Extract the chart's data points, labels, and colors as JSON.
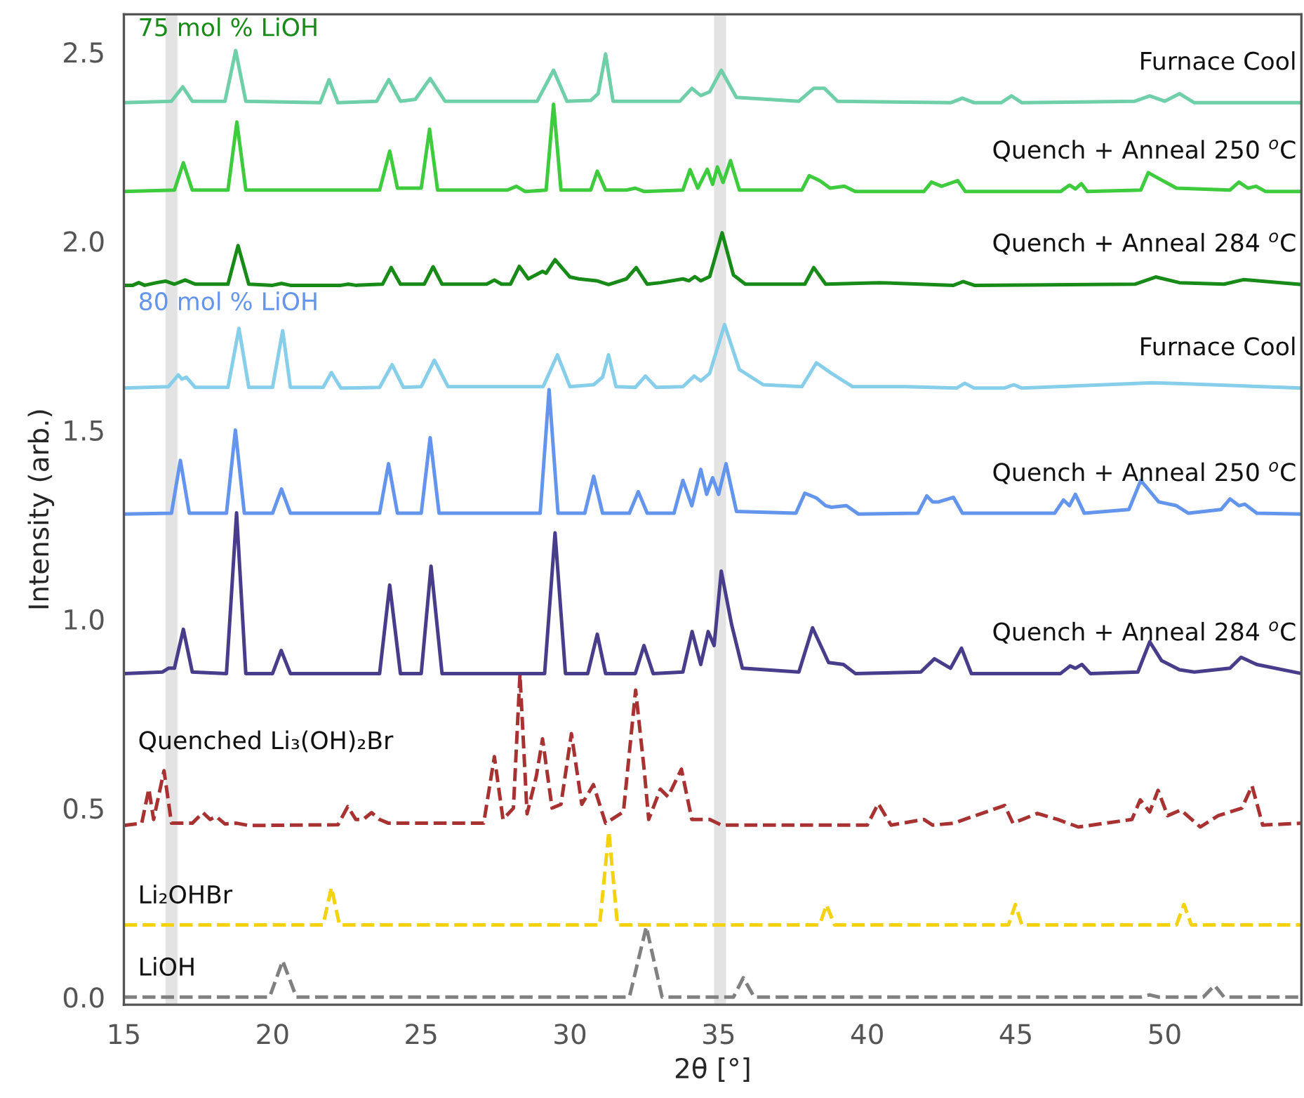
{
  "chart_data": {
    "type": "line",
    "xlabel": "2θ [°]",
    "ylabel": "Intensity (arb.)",
    "xlim": [
      15,
      54.6
    ],
    "ylim": [
      -0.02,
      2.6
    ],
    "xticks": [
      15,
      20,
      25,
      30,
      35,
      40,
      45,
      50
    ],
    "yticks": [
      {
        "value": 0,
        "label": "0.0"
      },
      {
        "value": 0.5,
        "label": "0.5"
      },
      {
        "value": 1,
        "label": "1.0"
      },
      {
        "value": 1.5,
        "label": "1.5"
      },
      {
        "value": 2,
        "label": "2.0"
      },
      {
        "value": 2.5,
        "label": "2.5"
      }
    ],
    "grid": false,
    "legend": false,
    "line_style": "solid",
    "annotations": [
      "75 mol % LiOH",
      "80 mol % LiOH"
    ],
    "bands": [
      {
        "axis": "x",
        "from": 16.4,
        "to": 16.8,
        "color": "#e3e3e3"
      },
      {
        "axis": "x",
        "from": 34.85,
        "to": 35.25,
        "color": "#e3e3e3"
      }
    ],
    "series": [
      {
        "name": "Furnace Cool",
        "color": "#6fcfa8",
        "x": [
          15,
          16.6,
          16.98,
          17.3,
          18.4,
          18.76,
          19.1,
          21.6,
          21.9,
          22.2,
          23.5,
          23.91,
          24.3,
          24.8,
          25.3,
          25.8,
          28.9,
          29.45,
          29.9,
          30.7,
          30.95,
          31.2,
          31.45,
          33.7,
          34.1,
          34.4,
          34.7,
          35.09,
          35.6,
          37.7,
          38.2,
          38.56,
          39.0,
          42.8,
          43.2,
          43.6,
          44.5,
          44.85,
          45.2,
          49.0,
          49.5,
          50.0,
          50.5,
          51.0,
          54.6
        ],
        "values": [
          2.366,
          2.37,
          2.408,
          2.37,
          2.37,
          2.504,
          2.37,
          2.366,
          2.427,
          2.366,
          2.37,
          2.427,
          2.37,
          2.375,
          2.43,
          2.37,
          2.37,
          2.452,
          2.37,
          2.372,
          2.39,
          2.495,
          2.37,
          2.37,
          2.404,
          2.385,
          2.395,
          2.452,
          2.38,
          2.37,
          2.404,
          2.404,
          2.37,
          2.366,
          2.378,
          2.366,
          2.366,
          2.384,
          2.366,
          2.37,
          2.384,
          2.37,
          2.39,
          2.366,
          2.366
        ]
      },
      {
        "name": "Quench + Anneal 250 $^{o}$C",
        "color": "#3ecc3e",
        "x": [
          15,
          16.7,
          17.0,
          17.3,
          18.5,
          18.8,
          19.1,
          23.6,
          23.94,
          24.2,
          25.0,
          25.28,
          25.55,
          27.9,
          28.2,
          28.5,
          29.2,
          29.45,
          29.7,
          30.7,
          30.92,
          31.2,
          31.9,
          32.2,
          32.5,
          33.8,
          34.04,
          34.3,
          34.62,
          34.8,
          34.96,
          35.15,
          35.4,
          35.7,
          37.8,
          38.05,
          38.4,
          38.75,
          39.23,
          39.6,
          41.9,
          42.16,
          42.5,
          43.04,
          43.3,
          46.5,
          46.8,
          47.0,
          47.2,
          47.4,
          49.2,
          49.45,
          49.7,
          50.4,
          52.2,
          52.5,
          52.8,
          53.07,
          53.4,
          54.6
        ],
        "values": [
          2.131,
          2.135,
          2.207,
          2.135,
          2.135,
          2.315,
          2.135,
          2.135,
          2.238,
          2.14,
          2.14,
          2.296,
          2.135,
          2.135,
          2.145,
          2.131,
          2.135,
          2.362,
          2.135,
          2.135,
          2.185,
          2.135,
          2.135,
          2.14,
          2.131,
          2.135,
          2.189,
          2.14,
          2.19,
          2.15,
          2.196,
          2.155,
          2.213,
          2.135,
          2.135,
          2.173,
          2.16,
          2.14,
          2.145,
          2.131,
          2.131,
          2.156,
          2.145,
          2.16,
          2.131,
          2.131,
          2.148,
          2.138,
          2.152,
          2.131,
          2.135,
          2.181,
          2.17,
          2.14,
          2.135,
          2.156,
          2.14,
          2.145,
          2.131,
          2.131
        ]
      },
      {
        "name": "Quench + Anneal 284 $^{o}$C",
        "color": "#178a17",
        "x": [
          15,
          15.3,
          15.5,
          15.7,
          16.1,
          16.4,
          16.7,
          17.06,
          17.4,
          18.5,
          18.84,
          19.2,
          20.0,
          20.3,
          20.6,
          22.3,
          22.55,
          22.8,
          23.7,
          23.99,
          24.3,
          25.1,
          25.4,
          25.7,
          27.2,
          27.46,
          27.7,
          28.0,
          28.3,
          28.6,
          29.08,
          29.2,
          29.5,
          30.0,
          30.3,
          30.9,
          31.3,
          31.9,
          32.23,
          32.6,
          33.05,
          33.8,
          34.0,
          34.2,
          34.4,
          34.7,
          35.12,
          35.5,
          35.9,
          37.9,
          38.2,
          38.6,
          40.4,
          42.9,
          43.23,
          43.6,
          49.0,
          49.7,
          50.5,
          52.0,
          52.65,
          54.6
        ],
        "values": [
          1.883,
          1.883,
          1.89,
          1.883,
          1.89,
          1.894,
          1.886,
          1.897,
          1.886,
          1.886,
          1.988,
          1.886,
          1.883,
          1.888,
          1.883,
          1.883,
          1.886,
          1.883,
          1.886,
          1.93,
          1.886,
          1.886,
          1.932,
          1.886,
          1.886,
          1.897,
          1.886,
          1.886,
          1.933,
          1.9,
          1.92,
          1.915,
          1.951,
          1.905,
          1.9,
          1.895,
          1.885,
          1.9,
          1.93,
          1.886,
          1.89,
          1.9,
          1.895,
          1.906,
          1.895,
          1.906,
          2.022,
          1.91,
          1.886,
          1.886,
          1.93,
          1.886,
          1.89,
          1.883,
          1.893,
          1.883,
          1.886,
          1.905,
          1.89,
          1.886,
          1.898,
          1.885
        ]
      },
      {
        "name": "Furnace Cool",
        "color": "#87ceeb",
        "x": [
          15,
          16.5,
          16.83,
          16.95,
          17.1,
          17.4,
          18.5,
          18.87,
          19.2,
          20.0,
          20.34,
          20.6,
          21.7,
          21.98,
          22.3,
          23.6,
          24.02,
          24.4,
          25.0,
          25.44,
          25.9,
          29.1,
          29.58,
          30.0,
          30.8,
          31.1,
          31.3,
          31.55,
          32.2,
          32.54,
          32.9,
          33.8,
          34.18,
          34.4,
          34.7,
          35.2,
          35.7,
          36.5,
          37.8,
          38.29,
          38.8,
          39.5,
          41.3,
          43.0,
          43.28,
          43.6,
          44.6,
          44.93,
          45.2,
          49.58,
          50.6,
          54.6
        ],
        "values": [
          1.611,
          1.615,
          1.646,
          1.635,
          1.64,
          1.613,
          1.613,
          1.769,
          1.613,
          1.613,
          1.763,
          1.613,
          1.613,
          1.652,
          1.611,
          1.613,
          1.673,
          1.613,
          1.615,
          1.685,
          1.615,
          1.615,
          1.699,
          1.615,
          1.62,
          1.64,
          1.699,
          1.615,
          1.613,
          1.643,
          1.613,
          1.615,
          1.643,
          1.63,
          1.65,
          1.779,
          1.66,
          1.62,
          1.615,
          1.678,
          1.65,
          1.615,
          1.615,
          1.611,
          1.624,
          1.611,
          1.611,
          1.62,
          1.611,
          1.625,
          1.623,
          1.611
        ]
      },
      {
        "name": "Quench + Anneal 250 $^{o}$C",
        "color": "#6495ed",
        "x": [
          15,
          16.6,
          16.9,
          17.2,
          18.45,
          18.75,
          19.05,
          20.0,
          20.3,
          20.6,
          23.6,
          23.9,
          24.2,
          25.0,
          25.3,
          25.6,
          29.0,
          29.3,
          29.6,
          30.5,
          30.8,
          31.1,
          32.0,
          32.3,
          32.6,
          33.5,
          33.8,
          34.1,
          34.4,
          34.6,
          34.8,
          35.0,
          35.25,
          35.6,
          37.6,
          37.9,
          38.3,
          38.6,
          38.8,
          39.3,
          39.7,
          41.7,
          42.0,
          42.2,
          42.4,
          42.9,
          43.2,
          46.3,
          46.6,
          46.8,
          47.0,
          47.3,
          48.8,
          49.2,
          49.8,
          50.4,
          50.8,
          51.9,
          52.2,
          52.5,
          52.7,
          53.1,
          54.6
        ],
        "values": [
          1.278,
          1.28,
          1.42,
          1.28,
          1.28,
          1.5,
          1.28,
          1.28,
          1.344,
          1.28,
          1.28,
          1.411,
          1.28,
          1.28,
          1.48,
          1.28,
          1.28,
          1.607,
          1.28,
          1.28,
          1.378,
          1.28,
          1.28,
          1.337,
          1.28,
          1.28,
          1.367,
          1.3,
          1.396,
          1.33,
          1.374,
          1.33,
          1.411,
          1.285,
          1.28,
          1.333,
          1.32,
          1.3,
          1.296,
          1.3,
          1.278,
          1.28,
          1.326,
          1.31,
          1.31,
          1.322,
          1.28,
          1.28,
          1.315,
          1.3,
          1.33,
          1.28,
          1.29,
          1.367,
          1.31,
          1.3,
          1.28,
          1.29,
          1.318,
          1.3,
          1.304,
          1.28,
          1.278
        ]
      },
      {
        "name": "Quench + Anneal 284 $^{o}$C",
        "color": "#483d8b",
        "x": [
          15,
          16.3,
          16.5,
          16.7,
          17.0,
          17.3,
          18.45,
          18.79,
          19.1,
          20.0,
          20.29,
          20.6,
          23.6,
          23.94,
          24.3,
          25.0,
          25.33,
          25.7,
          29.15,
          29.5,
          29.85,
          30.6,
          30.92,
          31.2,
          32.2,
          32.49,
          32.8,
          33.8,
          34.11,
          34.4,
          34.65,
          34.85,
          35.09,
          35.44,
          35.8,
          37.7,
          38.16,
          38.7,
          39.2,
          39.6,
          41.8,
          42.26,
          42.8,
          43.17,
          43.5,
          46.5,
          46.82,
          47.0,
          47.22,
          47.5,
          49.1,
          49.5,
          49.9,
          50.5,
          51.0,
          52.2,
          52.57,
          53.1,
          54.6
        ],
        "values": [
          0.856,
          0.86,
          0.87,
          0.87,
          0.973,
          0.86,
          0.856,
          1.281,
          0.856,
          0.856,
          0.917,
          0.856,
          0.856,
          1.09,
          0.856,
          0.856,
          1.14,
          0.856,
          0.856,
          1.228,
          0.856,
          0.856,
          0.96,
          0.856,
          0.856,
          0.93,
          0.856,
          0.86,
          0.967,
          0.88,
          0.967,
          0.93,
          1.127,
          0.985,
          0.87,
          0.86,
          0.977,
          0.885,
          0.88,
          0.856,
          0.86,
          0.895,
          0.87,
          0.923,
          0.856,
          0.856,
          0.876,
          0.87,
          0.88,
          0.856,
          0.86,
          0.94,
          0.89,
          0.866,
          0.86,
          0.87,
          0.899,
          0.88,
          0.856
        ]
      },
      {
        "name": "Quenched Li₃(OH)₂Br",
        "color": "#a83232",
        "line_style": "dashed",
        "x": [
          15,
          15.6,
          15.84,
          16.0,
          16.35,
          16.6,
          17.3,
          17.66,
          17.9,
          18.1,
          18.4,
          18.8,
          19.2,
          22.2,
          22.53,
          22.8,
          23.05,
          23.33,
          23.6,
          23.9,
          27.1,
          27.46,
          27.75,
          28.1,
          28.32,
          28.56,
          28.87,
          29.08,
          29.4,
          29.7,
          30.05,
          30.4,
          30.79,
          31.2,
          31.8,
          32.21,
          32.5,
          32.65,
          33.04,
          33.3,
          33.75,
          34.1,
          34.7,
          35.1,
          40.0,
          40.37,
          40.8,
          41.9,
          42.2,
          42.9,
          44.62,
          44.9,
          45.72,
          46.4,
          47.1,
          48.9,
          49.18,
          49.5,
          49.78,
          50.1,
          50.55,
          51.2,
          51.8,
          52.6,
          52.94,
          53.3,
          54.6
        ],
        "values": [
          0.454,
          0.46,
          0.551,
          0.47,
          0.599,
          0.46,
          0.46,
          0.488,
          0.47,
          0.478,
          0.458,
          0.46,
          0.454,
          0.456,
          0.504,
          0.47,
          0.47,
          0.488,
          0.47,
          0.46,
          0.46,
          0.636,
          0.47,
          0.5,
          0.853,
          0.485,
          0.584,
          0.683,
          0.5,
          0.51,
          0.697,
          0.51,
          0.562,
          0.46,
          0.49,
          0.812,
          0.6,
          0.47,
          0.55,
          0.53,
          0.603,
          0.47,
          0.47,
          0.455,
          0.455,
          0.512,
          0.455,
          0.47,
          0.455,
          0.46,
          0.507,
          0.46,
          0.486,
          0.47,
          0.45,
          0.47,
          0.522,
          0.49,
          0.547,
          0.48,
          0.495,
          0.45,
          0.48,
          0.5,
          0.559,
          0.455,
          0.46
        ]
      },
      {
        "name": "Li₂OHBr",
        "color": "#f5d20f",
        "line_style": "dashed",
        "x": [
          15,
          21.7,
          21.98,
          22.25,
          31.0,
          31.31,
          31.6,
          38.4,
          38.63,
          38.9,
          44.75,
          44.98,
          45.2,
          50.4,
          50.65,
          50.9,
          54.6
        ],
        "values": [
          0.191,
          0.191,
          0.29,
          0.191,
          0.191,
          0.438,
          0.191,
          0.191,
          0.244,
          0.191,
          0.191,
          0.245,
          0.191,
          0.191,
          0.245,
          0.191,
          0.191
        ]
      },
      {
        "name": "LiOH",
        "color": "#808080",
        "line_style": "dashed",
        "x": [
          15,
          19.9,
          20.34,
          20.8,
          32.0,
          32.57,
          33.1,
          35.5,
          35.83,
          36.2,
          49.2,
          49.5,
          49.8,
          51.3,
          51.68,
          52.0,
          54.6
        ],
        "values": [
          0,
          0,
          0.096,
          0,
          0,
          0.186,
          0,
          0,
          0.051,
          0,
          0,
          0.006,
          0,
          0,
          0.031,
          0,
          0
        ]
      }
    ]
  }
}
